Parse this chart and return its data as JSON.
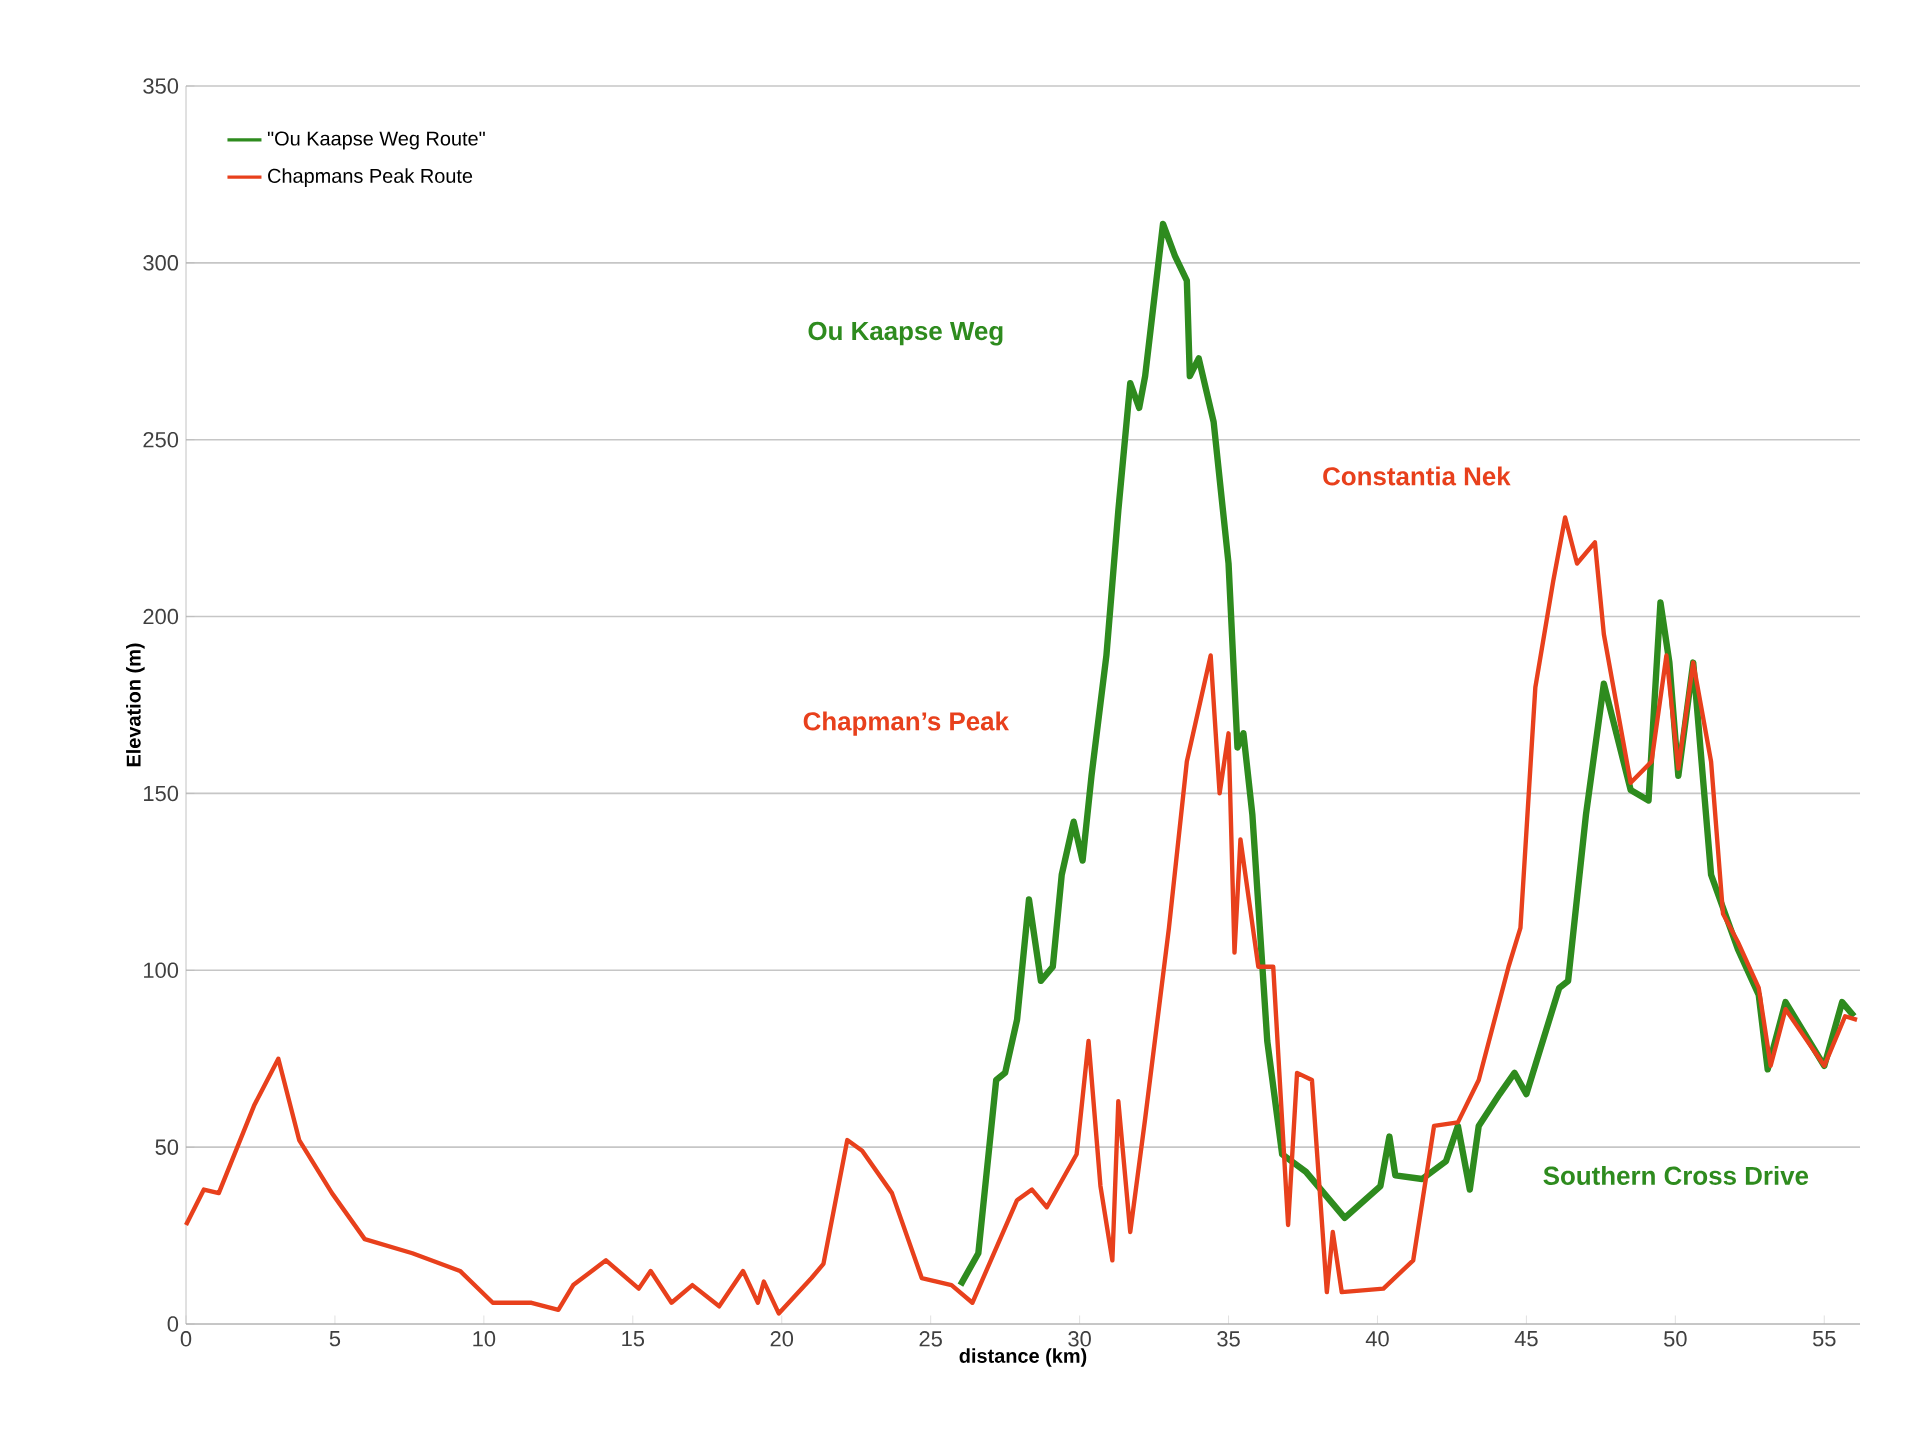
{
  "chart_data": {
    "type": "line",
    "xlabel": "distance (km)",
    "ylabel": "Elevation (m)",
    "xlim": [
      0,
      56.2
    ],
    "ylim": [
      0,
      350
    ],
    "xticks": [
      0,
      5,
      10,
      15,
      20,
      25,
      30,
      35,
      40,
      45,
      50,
      55
    ],
    "yticks": [
      0,
      50,
      100,
      150,
      200,
      250,
      300,
      350
    ],
    "grid": "y",
    "legend": "top left",
    "series": [
      {
        "name": "\"Ou Kaapse Weg Route\"",
        "color": "#2e8b1e",
        "x": [
          26.0,
          26.6,
          27.2,
          27.5,
          27.9,
          28.3,
          28.7,
          29.1,
          29.4,
          29.8,
          30.1,
          30.4,
          30.9,
          31.3,
          31.7,
          32.0,
          32.2,
          32.8,
          33.2,
          33.6,
          33.7,
          34.0,
          34.5,
          35.0,
          35.3,
          35.5,
          35.8,
          36.3,
          36.8,
          37.6,
          38.9,
          40.1,
          40.4,
          40.6,
          41.5,
          42.3,
          42.7,
          43.1,
          43.4,
          44.1,
          44.6,
          45.0,
          46.1,
          46.4,
          47.0,
          47.6,
          48.5,
          49.1,
          49.5,
          49.8,
          50.1,
          50.6,
          51.2,
          52.1,
          52.8,
          53.1,
          53.7,
          55.0,
          55.6,
          56.0
        ],
        "values": [
          11,
          20,
          69,
          71,
          86,
          120,
          97,
          101,
          127,
          142,
          131,
          155,
          189,
          230,
          266,
          259,
          268,
          311,
          302,
          295,
          268,
          273,
          255,
          215,
          163,
          167,
          144,
          80,
          48,
          43,
          30,
          39,
          53,
          42,
          41,
          46,
          56,
          38,
          56,
          65,
          71,
          65,
          95,
          97,
          144,
          181,
          151,
          148,
          204,
          187,
          155,
          187,
          127,
          106,
          93,
          72,
          91,
          73,
          91,
          87
        ]
      },
      {
        "name": "Chapmans Peak Route",
        "color": "#e8401c",
        "x": [
          0.0,
          0.6,
          1.1,
          2.3,
          3.1,
          3.8,
          4.9,
          6.0,
          7.6,
          9.2,
          10.3,
          11.6,
          12.5,
          13.0,
          14.1,
          15.2,
          15.6,
          16.3,
          17.0,
          17.9,
          18.7,
          19.2,
          19.4,
          19.9,
          21.0,
          21.4,
          22.2,
          22.7,
          23.7,
          24.7,
          25.7,
          26.4,
          27.9,
          28.4,
          28.9,
          29.9,
          30.3,
          30.7,
          31.1,
          31.3,
          31.7,
          32.2,
          33.0,
          33.6,
          34.4,
          34.7,
          35.0,
          35.2,
          35.4,
          36.0,
          36.5,
          37.0,
          37.3,
          37.8,
          38.3,
          38.5,
          38.8,
          40.2,
          41.2,
          41.9,
          42.7,
          43.4,
          44.4,
          44.8,
          45.3,
          45.9,
          46.3,
          46.7,
          47.3,
          47.6,
          47.9,
          48.5,
          49.2,
          49.7,
          50.1,
          50.6,
          51.2,
          51.6,
          52.1,
          52.8,
          53.2,
          53.7,
          55.0,
          55.7,
          56.1
        ],
        "values": [
          28,
          38,
          37,
          62,
          75,
          52,
          37,
          24,
          20,
          15,
          6,
          6,
          4,
          11,
          18,
          10,
          15,
          6,
          11,
          5,
          15,
          6,
          12,
          3,
          13,
          17,
          52,
          49,
          37,
          13,
          11,
          6,
          35,
          38,
          33,
          48,
          80,
          39,
          18,
          63,
          26,
          58,
          112,
          159,
          189,
          150,
          167,
          105,
          137,
          101,
          101,
          28,
          71,
          69,
          9,
          26,
          9,
          10,
          18,
          56,
          57,
          69,
          101,
          112,
          180,
          210,
          228,
          215,
          221,
          195,
          181,
          153,
          159,
          189,
          157,
          187,
          159,
          116,
          108,
          95,
          73,
          89,
          73,
          87,
          86
        ]
      }
    ],
    "annotations": [
      "Ou Kaapse Weg",
      "Constantia Nek",
      "Chapman’s Peak",
      "Southern Cross Drive"
    ]
  }
}
